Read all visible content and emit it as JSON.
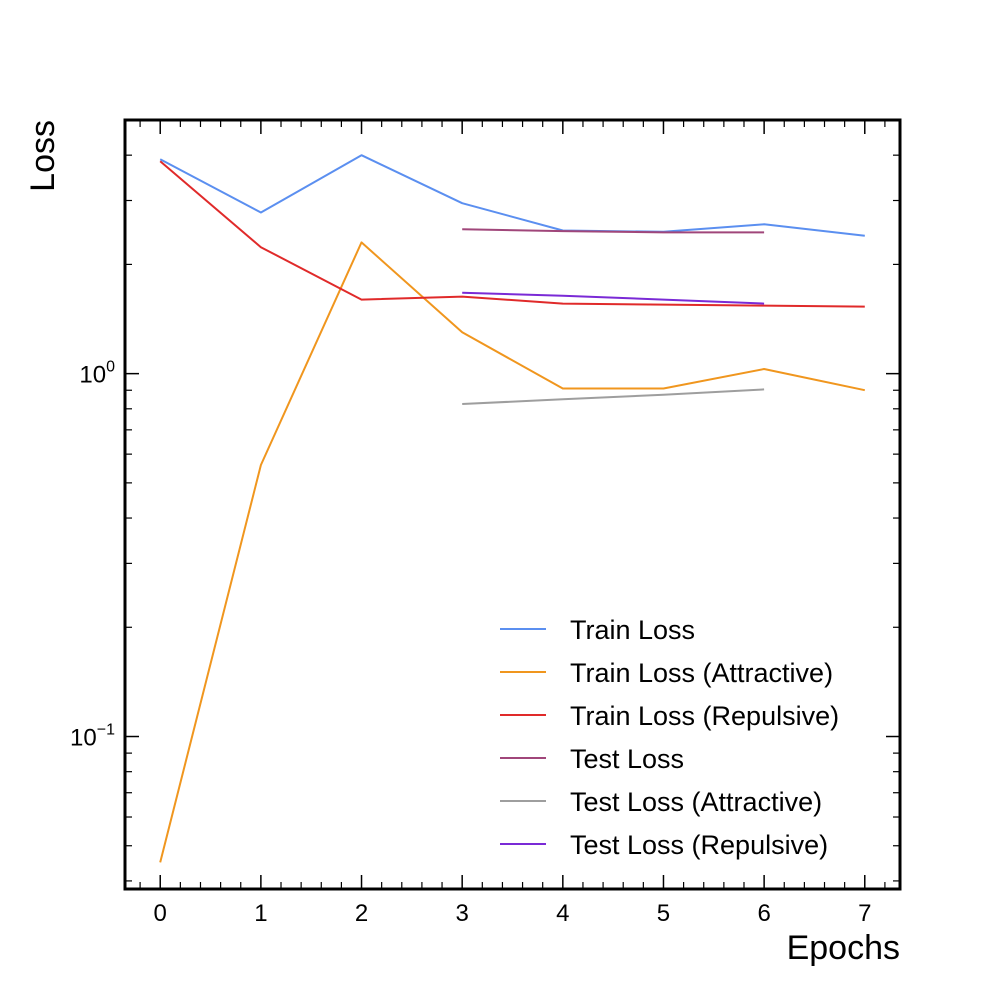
{
  "chart_data": {
    "type": "line",
    "xlabel": "Epochs",
    "ylabel": "Loss",
    "yscale": "log",
    "xlim": [
      -0.35,
      7.35
    ],
    "ylim": [
      0.038,
      5.0
    ],
    "x_ticks": [
      0,
      1,
      2,
      3,
      4,
      5,
      6,
      7
    ],
    "y_ticks": [
      {
        "value": 1.0,
        "base": "10",
        "exp": "0"
      },
      {
        "value": 0.1,
        "base": "10",
        "exp": "−1"
      }
    ],
    "legend_position": "lower-right",
    "grid": false,
    "series": [
      {
        "name": "Train Loss",
        "color": "#5b8ff0",
        "x": [
          0,
          1,
          2,
          3,
          4,
          5,
          6,
          7
        ],
        "y": [
          3.9,
          2.78,
          4.0,
          2.95,
          2.48,
          2.46,
          2.58,
          2.4
        ]
      },
      {
        "name": "Train Loss (Attractive)",
        "color": "#f0961e",
        "x": [
          0,
          1,
          2,
          3,
          4,
          5,
          6,
          7
        ],
        "y": [
          0.045,
          0.56,
          2.3,
          1.3,
          0.91,
          0.91,
          1.03,
          0.9
        ]
      },
      {
        "name": "Train Loss (Repulsive)",
        "color": "#e02a2a",
        "x": [
          0,
          1,
          2,
          3,
          4,
          5,
          6,
          7
        ],
        "y": [
          3.85,
          2.23,
          1.6,
          1.63,
          1.56,
          1.55,
          1.54,
          1.53
        ]
      },
      {
        "name": "Test Loss",
        "color": "#a0467a",
        "x": [
          3,
          4,
          5,
          6
        ],
        "y": [
          2.5,
          2.47,
          2.45,
          2.45
        ]
      },
      {
        "name": "Test Loss (Attractive)",
        "color": "#9e9e9e",
        "x": [
          3,
          4,
          5,
          6
        ],
        "y": [
          0.825,
          0.85,
          0.875,
          0.905
        ]
      },
      {
        "name": "Test Loss (Repulsive)",
        "color": "#7a2ad6",
        "x": [
          3,
          4,
          5,
          6
        ],
        "y": [
          1.67,
          1.64,
          1.6,
          1.56
        ]
      }
    ]
  }
}
